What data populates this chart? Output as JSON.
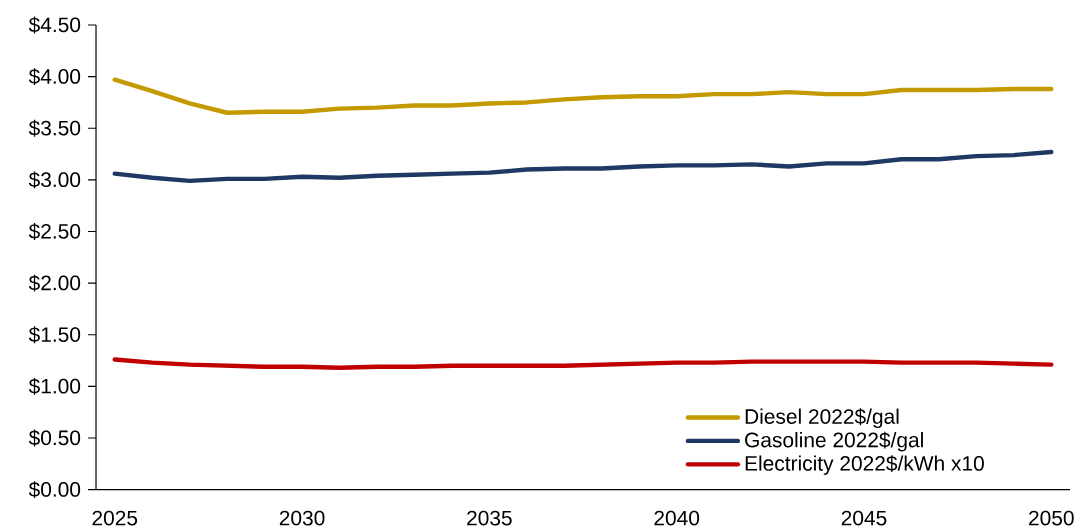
{
  "chart_data": {
    "type": "line",
    "categories": [
      "2025",
      null,
      null,
      null,
      null,
      "2030",
      null,
      null,
      null,
      null,
      "2035",
      null,
      null,
      null,
      null,
      "2040",
      null,
      null,
      null,
      null,
      "2045",
      null,
      null,
      null,
      null,
      "2050"
    ],
    "series": [
      {
        "name": "Diesel 2022$/gal",
        "color": "#c49a00",
        "values": [
          3.97,
          3.86,
          3.74,
          3.65,
          3.66,
          3.66,
          3.69,
          3.7,
          3.72,
          3.72,
          3.74,
          3.75,
          3.78,
          3.8,
          3.81,
          3.81,
          3.83,
          3.83,
          3.85,
          3.83,
          3.83,
          3.87,
          3.87,
          3.87,
          3.88,
          3.88
        ]
      },
      {
        "name": "Gasoline 2022$/gal",
        "color": "#1f3864",
        "values": [
          3.06,
          3.02,
          2.99,
          3.01,
          3.01,
          3.03,
          3.02,
          3.04,
          3.05,
          3.06,
          3.07,
          3.1,
          3.11,
          3.11,
          3.13,
          3.14,
          3.14,
          3.15,
          3.13,
          3.16,
          3.16,
          3.2,
          3.2,
          3.23,
          3.24,
          3.27
        ]
      },
      {
        "name": "Electricity 2022$/kWh x10",
        "color": "#c00000",
        "values": [
          1.26,
          1.23,
          1.21,
          1.2,
          1.19,
          1.19,
          1.18,
          1.19,
          1.19,
          1.2,
          1.2,
          1.2,
          1.2,
          1.21,
          1.22,
          1.23,
          1.23,
          1.24,
          1.24,
          1.24,
          1.24,
          1.23,
          1.23,
          1.23,
          1.22,
          1.21
        ]
      }
    ],
    "ylim": [
      0,
      4.5
    ],
    "yticks": [
      {
        "value": 0,
        "label": "$0.00"
      },
      {
        "value": 0.5,
        "label": "$0.50"
      },
      {
        "value": 1,
        "label": "$1.00"
      },
      {
        "value": 1.5,
        "label": "$1.50"
      },
      {
        "value": 2,
        "label": "$2.00"
      },
      {
        "value": 2.5,
        "label": "$2.50"
      },
      {
        "value": 3,
        "label": "$3.00"
      },
      {
        "value": 3.5,
        "label": "$3.50"
      },
      {
        "value": 4,
        "label": "$4.00"
      },
      {
        "value": 4.5,
        "label": "$4.50"
      }
    ],
    "grid": false,
    "legend": "bottom right"
  }
}
